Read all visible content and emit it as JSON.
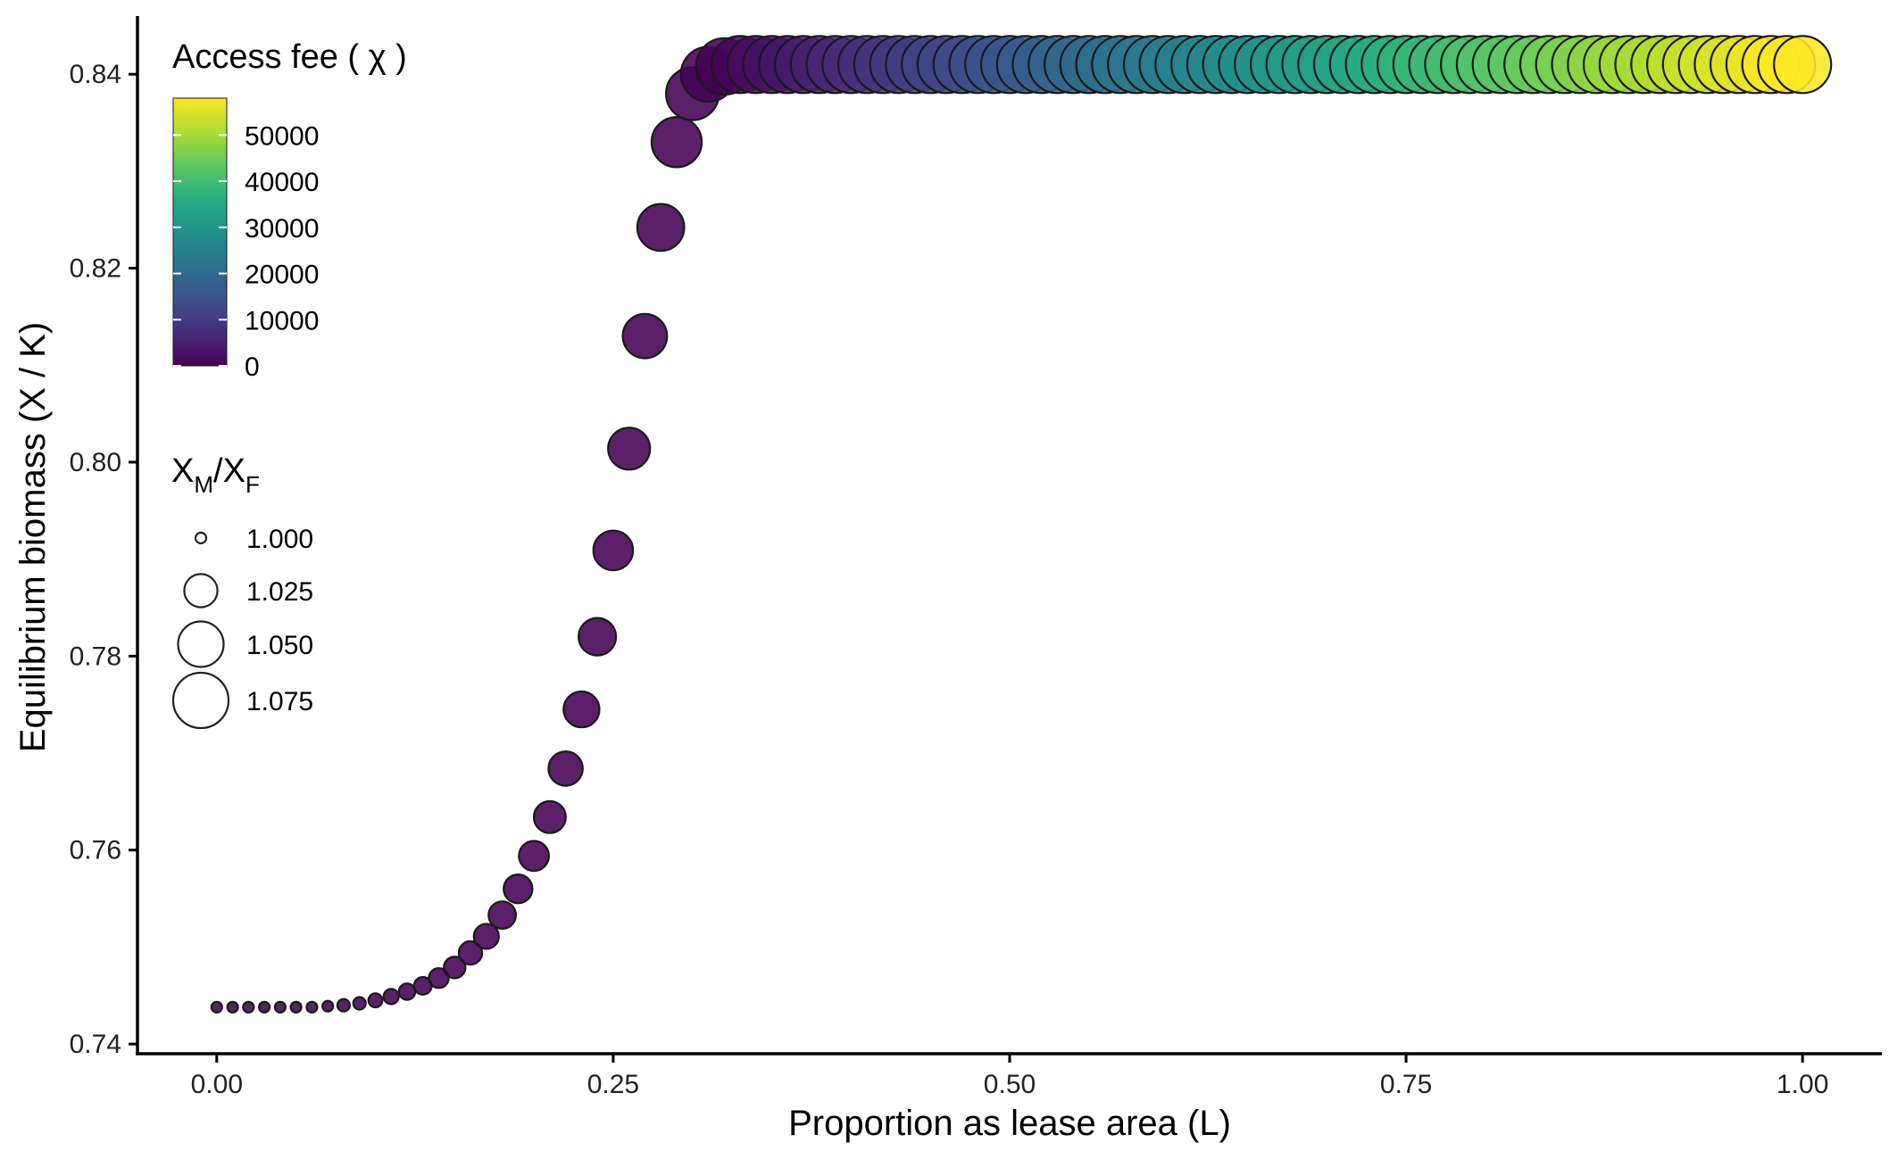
{
  "chart_data": {
    "type": "scatter",
    "xlabel": "Proportion as lease area (L)",
    "ylabel": "Equilibrium biomass (X / K)",
    "xlim": [
      -0.05,
      1.05
    ],
    "ylim": [
      0.739,
      0.846
    ],
    "x_ticks": [
      "0.00",
      "0.25",
      "0.50",
      "0.75",
      "1.00"
    ],
    "x_tick_values": [
      0,
      0.25,
      0.5,
      0.75,
      1.0
    ],
    "y_ticks": [
      "0.74",
      "0.76",
      "0.78",
      "0.80",
      "0.82",
      "0.84"
    ],
    "y_tick_values": [
      0.74,
      0.76,
      0.78,
      0.8,
      0.82,
      0.84
    ],
    "grid": false,
    "color_scale": "viridis",
    "color_legend": {
      "title": "Access fee ( χ )",
      "min": 0,
      "max": 58000,
      "tick_labels": [
        "50000",
        "40000",
        "30000",
        "20000",
        "10000",
        "0"
      ],
      "tick_values": [
        50000,
        40000,
        30000,
        20000,
        10000,
        0
      ]
    },
    "size_legend": {
      "title_main": "X",
      "title_sub1": "M",
      "title_sep": "/X",
      "title_sub2": "F",
      "labels": [
        "1.000",
        "1.025",
        "1.050",
        "1.075"
      ],
      "values": [
        1.0,
        1.025,
        1.05,
        1.075
      ],
      "min": 1.0,
      "max": 1.075
    },
    "points": {
      "x": [
        0,
        0.01,
        0.02,
        0.03,
        0.04,
        0.05,
        0.06,
        0.07,
        0.08,
        0.09,
        0.1,
        0.11,
        0.12,
        0.13,
        0.14,
        0.15,
        0.16,
        0.17,
        0.18,
        0.19,
        0.2,
        0.21,
        0.22,
        0.23,
        0.24,
        0.25,
        0.26,
        0.27,
        0.28,
        0.29,
        0.3,
        0.31,
        0.32,
        0.33,
        0.34,
        0.35,
        0.36,
        0.37,
        0.38,
        0.39,
        0.4,
        0.41,
        0.42,
        0.43,
        0.44,
        0.45,
        0.46,
        0.47,
        0.48,
        0.49,
        0.5,
        0.51,
        0.52,
        0.53,
        0.54,
        0.55,
        0.56,
        0.57,
        0.58,
        0.59,
        0.6,
        0.61,
        0.62,
        0.63,
        0.64,
        0.65,
        0.66,
        0.67,
        0.68,
        0.69,
        0.7,
        0.71,
        0.72,
        0.73,
        0.74,
        0.75,
        0.76,
        0.77,
        0.78,
        0.79,
        0.8,
        0.81,
        0.82,
        0.83,
        0.84,
        0.85,
        0.86,
        0.87,
        0.88,
        0.89,
        0.9,
        0.91,
        0.92,
        0.93,
        0.94,
        0.95,
        0.96,
        0.97,
        0.98,
        0.99,
        1.0
      ],
      "y": [
        0.7438,
        0.7438,
        0.7438,
        0.7438,
        0.7438,
        0.7438,
        0.7438,
        0.7439,
        0.744,
        0.7442,
        0.7445,
        0.7449,
        0.7454,
        0.746,
        0.7468,
        0.7479,
        0.7494,
        0.7511,
        0.7533,
        0.756,
        0.7594,
        0.7634,
        0.7684,
        0.7745,
        0.782,
        0.7909,
        0.8014,
        0.813,
        0.8242,
        0.833,
        0.838,
        0.84,
        0.8408,
        0.841,
        0.841,
        0.841,
        0.841,
        0.841,
        0.841,
        0.841,
        0.841,
        0.841,
        0.841,
        0.841,
        0.841,
        0.841,
        0.841,
        0.841,
        0.841,
        0.841,
        0.841,
        0.841,
        0.841,
        0.841,
        0.841,
        0.841,
        0.841,
        0.841,
        0.841,
        0.841,
        0.841,
        0.841,
        0.841,
        0.841,
        0.841,
        0.841,
        0.841,
        0.841,
        0.841,
        0.841,
        0.841,
        0.841,
        0.841,
        0.841,
        0.841,
        0.841,
        0.841,
        0.841,
        0.841,
        0.841,
        0.841,
        0.841,
        0.841,
        0.841,
        0.841,
        0.841,
        0.841,
        0.841,
        0.841,
        0.841,
        0.841,
        0.841,
        0.841,
        0.841,
        0.841,
        0.841,
        0.841,
        0.841,
        0.841,
        0.841,
        0.841
      ],
      "size": [
        1.0,
        1.0,
        1.0,
        1.0,
        1.0,
        1.0,
        1.0,
        1.0,
        1.001,
        1.001,
        1.002,
        1.003,
        1.004,
        1.005,
        1.007,
        1.009,
        1.011,
        1.013,
        1.016,
        1.018,
        1.02,
        1.023,
        1.027,
        1.03,
        1.033,
        1.037,
        1.042,
        1.047,
        1.053,
        1.061,
        1.068,
        1.074,
        1.078,
        1.08,
        1.08,
        1.08,
        1.08,
        1.08,
        1.08,
        1.08,
        1.08,
        1.08,
        1.08,
        1.08,
        1.08,
        1.08,
        1.08,
        1.08,
        1.08,
        1.08,
        1.08,
        1.08,
        1.08,
        1.08,
        1.08,
        1.08,
        1.08,
        1.08,
        1.08,
        1.08,
        1.08,
        1.08,
        1.08,
        1.08,
        1.08,
        1.08,
        1.08,
        1.08,
        1.08,
        1.08,
        1.08,
        1.08,
        1.08,
        1.08,
        1.08,
        1.08,
        1.08,
        1.08,
        1.08,
        1.08,
        1.08,
        1.08,
        1.08,
        1.08,
        1.08,
        1.08,
        1.08,
        1.08,
        1.08,
        1.08,
        1.08,
        1.08,
        1.08,
        1.08,
        1.08,
        1.08,
        1.08,
        1.08,
        1.08,
        1.08,
        1.08
      ],
      "fee": [
        0,
        0,
        0,
        0,
        0,
        0,
        0,
        0,
        0,
        0,
        0,
        0,
        0,
        0,
        0,
        0,
        0,
        0,
        0,
        0,
        0,
        0,
        0,
        0,
        0,
        0,
        0,
        0,
        0,
        0,
        0,
        0,
        0,
        880,
        1740,
        2610,
        3480,
        4350,
        5220,
        6090,
        6960,
        7830,
        8700,
        9570,
        10440,
        11310,
        12180,
        13050,
        13920,
        14790,
        15660,
        16530,
        17400,
        18270,
        19140,
        20010,
        20880,
        21750,
        22620,
        23490,
        24360,
        25230,
        26100,
        26970,
        27840,
        28710,
        29580,
        30450,
        31320,
        32190,
        33060,
        33930,
        34800,
        35670,
        36540,
        37410,
        38280,
        39150,
        40020,
        40890,
        41760,
        42630,
        43500,
        44370,
        45240,
        46110,
        46980,
        47850,
        48720,
        49590,
        50460,
        51330,
        52200,
        53070,
        53940,
        54810,
        55680,
        56550,
        57420,
        58000,
        58000
      ]
    }
  }
}
